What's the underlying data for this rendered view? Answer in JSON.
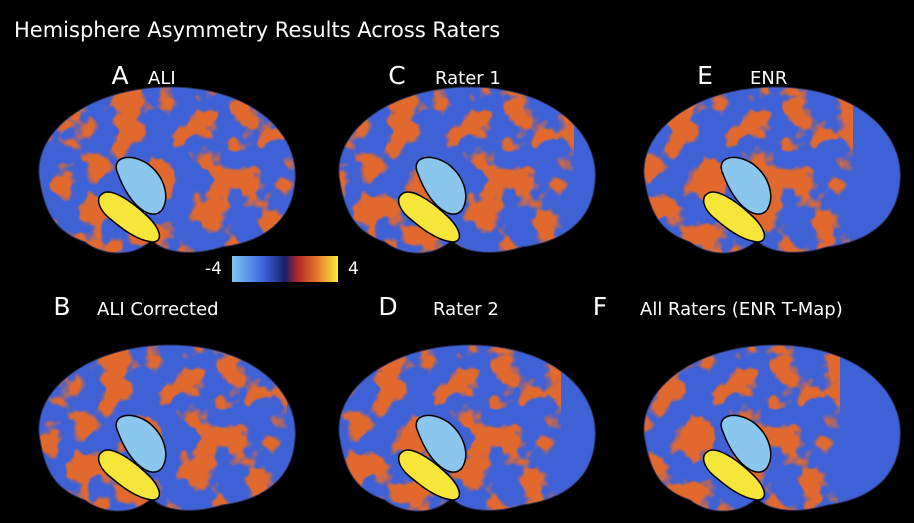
{
  "title": "Hemisphere Asymmetry Results Across Raters",
  "panels": [
    {
      "letter": "A",
      "label": "ALI"
    },
    {
      "letter": "B",
      "label": "ALI Corrected"
    },
    {
      "letter": "C",
      "label": "Rater 1"
    },
    {
      "letter": "D",
      "label": "Rater 2"
    },
    {
      "letter": "E",
      "label": "ENR"
    },
    {
      "letter": "F",
      "label": "All Raters (ENR T-Map)"
    }
  ],
  "colorbar": {
    "ticks": [
      -4,
      4
    ]
  }
}
